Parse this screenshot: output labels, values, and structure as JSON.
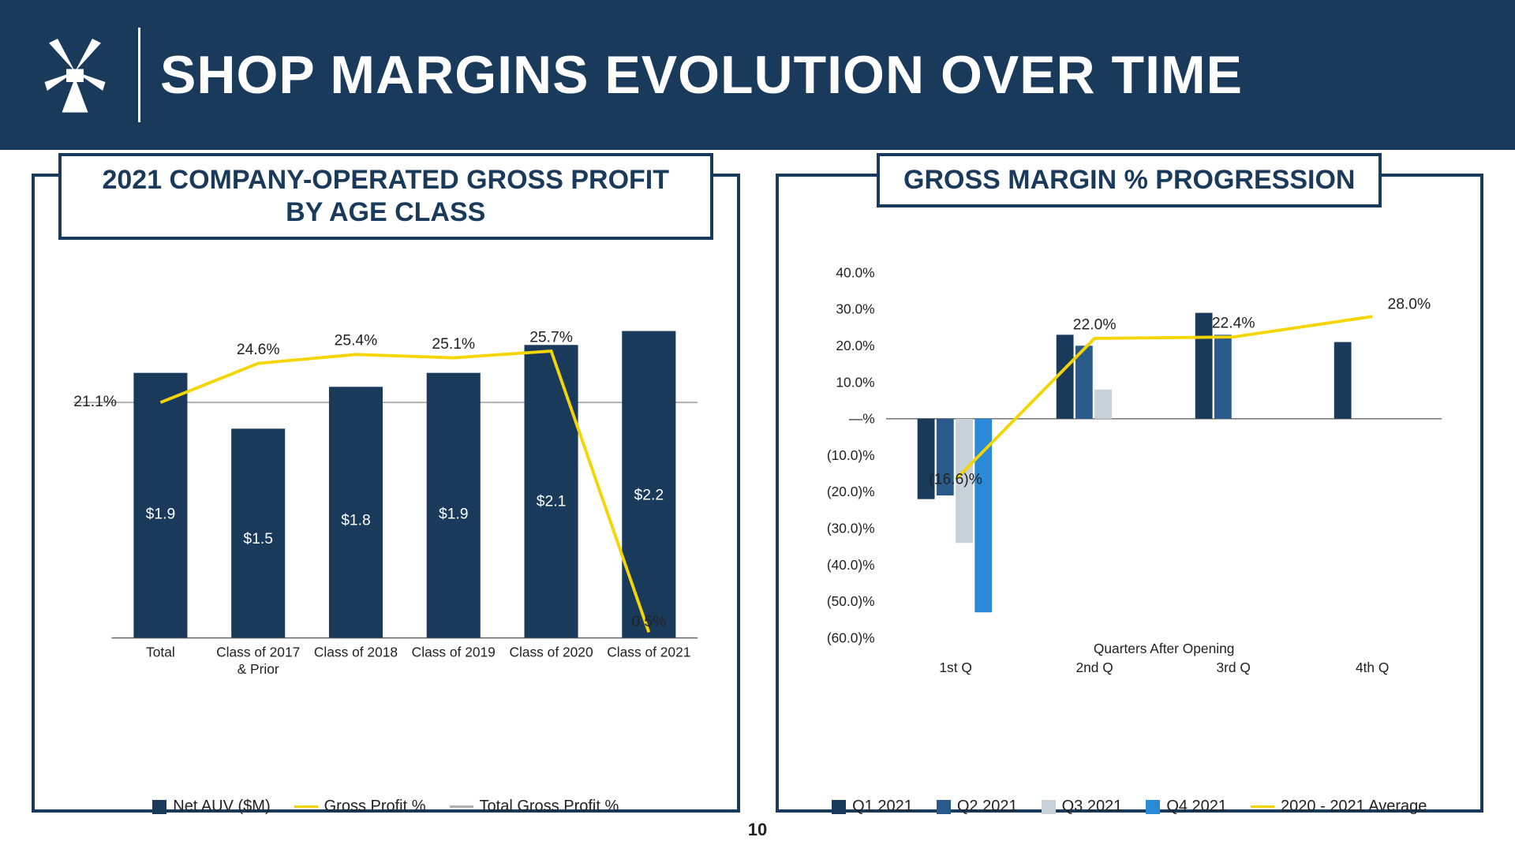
{
  "header": {
    "title": "SHOP MARGINS EVOLUTION OVER TIME",
    "bg_color": "#1a3a5c",
    "text_color": "#ffffff"
  },
  "page_number": "10",
  "panel_border_color": "#1a3a5c",
  "left_chart": {
    "title": "2021 COMPANY-OPERATED GROSS PROFIT BY AGE CLASS",
    "type": "bar_line",
    "categories": [
      "Total",
      "Class of 2017 & Prior",
      "Class of 2018",
      "Class of 2019",
      "Class of 2020",
      "Class of 2021"
    ],
    "bar_values": [
      1.9,
      1.5,
      1.8,
      1.9,
      2.1,
      2.2
    ],
    "bar_labels": [
      "$1.9",
      "$1.5",
      "$1.8",
      "$1.9",
      "$2.1",
      "$2.2"
    ],
    "bar_color": "#1a3a5c",
    "line_values": [
      21.1,
      24.6,
      25.4,
      25.1,
      25.7,
      0.5
    ],
    "line_labels": [
      "21.1%",
      "24.6%",
      "25.4%",
      "25.1%",
      "25.7%",
      "0.5%"
    ],
    "line_color": "#f5d500",
    "hline_value": 21.1,
    "hline_color": "#b0b0b0",
    "y_bar_max": 2.4,
    "y_line_max": 30,
    "legend": [
      {
        "type": "box",
        "color": "#1a3a5c",
        "label": "Net AUV ($M)"
      },
      {
        "type": "line",
        "color": "#f5d500",
        "label": "Gross Profit %"
      },
      {
        "type": "line",
        "color": "#b0b0b0",
        "label": "Total Gross Profit %"
      }
    ]
  },
  "right_chart": {
    "title": "GROSS MARGIN % PROGRESSION",
    "type": "grouped_bar_line",
    "x_label": "Quarters After Opening",
    "categories": [
      "1st Q",
      "2nd Q",
      "3rd Q",
      "4th Q"
    ],
    "y_ticks": [
      40,
      30,
      20,
      10,
      0,
      -10,
      -20,
      -30,
      -40,
      -50,
      -60
    ],
    "y_tick_labels": [
      "40.0%",
      "30.0%",
      "20.0%",
      "10.0%",
      "—%",
      "(10.0)%",
      "(20.0)%",
      "(30.0)%",
      "(40.0)%",
      "(50.0)%",
      "(60.0)%"
    ],
    "series": [
      {
        "name": "Q1 2021",
        "color": "#1a3a5c",
        "values": [
          -22,
          23,
          29,
          21
        ]
      },
      {
        "name": "Q2 2021",
        "color": "#2a5a8a",
        "values": [
          -21,
          20,
          23,
          null
        ]
      },
      {
        "name": "Q3 2021",
        "color": "#c8d0d8",
        "values": [
          -34,
          8,
          null,
          null
        ]
      },
      {
        "name": "Q4 2021",
        "color": "#2a8ad8",
        "values": [
          -53,
          null,
          null,
          null
        ]
      }
    ],
    "line_name": "2020 - 2021 Average",
    "line_color": "#f5d500",
    "line_values": [
      -16.6,
      22.0,
      22.4,
      28.0
    ],
    "line_labels": [
      "(16.6)%",
      "22.0%",
      "22.4%",
      "28.0%"
    ],
    "y_min": -60,
    "y_max": 40,
    "legend": [
      {
        "type": "box",
        "color": "#1a3a5c",
        "label": "Q1 2021"
      },
      {
        "type": "box",
        "color": "#2a5a8a",
        "label": "Q2 2021"
      },
      {
        "type": "box",
        "color": "#c8d0d8",
        "label": "Q3 2021"
      },
      {
        "type": "box",
        "color": "#2a8ad8",
        "label": "Q4 2021"
      },
      {
        "type": "line",
        "color": "#f5d500",
        "label": "2020 - 2021 Average"
      }
    ]
  }
}
